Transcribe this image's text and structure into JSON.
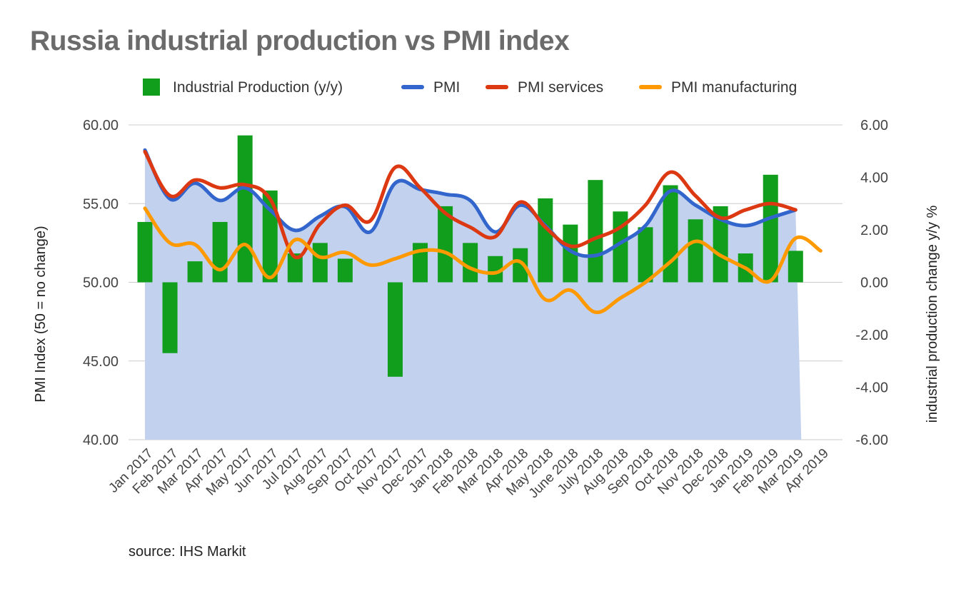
{
  "chart_data": {
    "type": "bar",
    "title": "Russia industrial production vs PMI index",
    "source": "source: IHS Markit",
    "ylabel_left": "PMI Index (50 = no change)",
    "ylabel_right": "industrial production change y/y %",
    "ylim_left": [
      40,
      60
    ],
    "ylim_right": [
      -6,
      6
    ],
    "yticks_left": [
      "60.00",
      "55.00",
      "50.00",
      "45.00",
      "40.00"
    ],
    "yticks_right": [
      "6.00",
      "4.00",
      "2.00",
      "0.00",
      "-2.00",
      "-4.00",
      "-6.00"
    ],
    "grid": true,
    "legend_position": "top",
    "categories": [
      "Jan 2017",
      "Feb 2017",
      "Mar 2017",
      "Apr 2017",
      "May 2017",
      "Jun 2017",
      "Jul 2017",
      "Aug 2017",
      "Sep 2017",
      "Oct 2017",
      "Nov 2017",
      "Dec 2017",
      "Jan 2018",
      "Feb 2018",
      "Mar 2018",
      "Apr 2018",
      "May 2018",
      "June 2018",
      "July 2018",
      "Aug 2018",
      "Sep 2018",
      "Oct 2018",
      "Nov 2018",
      "Dec 2018",
      "Jan 2019",
      "Feb 2019",
      "Mar 2019",
      "Apr 2019"
    ],
    "series": [
      {
        "name": "Industrial Production (y/y)",
        "type": "bar",
        "axis": "right",
        "color": "#119e1d",
        "values": [
          2.3,
          -2.7,
          0.8,
          2.3,
          5.6,
          3.5,
          1.1,
          1.5,
          0.9,
          null,
          -3.6,
          1.5,
          2.9,
          1.5,
          1.0,
          1.3,
          3.2,
          2.2,
          3.9,
          2.7,
          2.1,
          3.7,
          2.4,
          2.9,
          1.1,
          4.1,
          1.2,
          null
        ]
      },
      {
        "name": "PMI",
        "type": "area-line",
        "axis": "left",
        "color": "#3366cc",
        "fill": "#c2d1ee",
        "values": [
          58.4,
          55.3,
          56.3,
          55.2,
          56.0,
          54.6,
          53.3,
          54.2,
          54.8,
          53.2,
          56.3,
          55.9,
          55.6,
          55.2,
          53.2,
          54.9,
          53.6,
          52.0,
          51.7,
          52.5,
          53.6,
          55.8,
          54.9,
          54.0,
          53.6,
          54.1,
          54.6,
          null
        ]
      },
      {
        "name": "PMI services",
        "type": "line",
        "axis": "left",
        "color": "#dc3912",
        "values": [
          58.3,
          55.5,
          56.5,
          56.0,
          56.2,
          55.3,
          51.6,
          53.7,
          54.9,
          53.9,
          57.3,
          56.0,
          54.4,
          53.5,
          52.9,
          55.1,
          53.5,
          52.3,
          52.8,
          53.5,
          54.9,
          57.0,
          55.5,
          54.1,
          54.6,
          55.0,
          54.6,
          null
        ]
      },
      {
        "name": "PMI manufacturing",
        "type": "line",
        "axis": "left",
        "color": "#ff9900",
        "values": [
          54.7,
          52.5,
          52.4,
          50.8,
          52.4,
          50.3,
          52.7,
          51.6,
          51.9,
          51.1,
          51.5,
          52.0,
          51.9,
          50.9,
          50.6,
          51.3,
          48.9,
          49.5,
          48.1,
          49.0,
          50.0,
          51.3,
          52.6,
          51.7,
          50.9,
          50.1,
          52.8,
          52.0
        ]
      }
    ]
  }
}
